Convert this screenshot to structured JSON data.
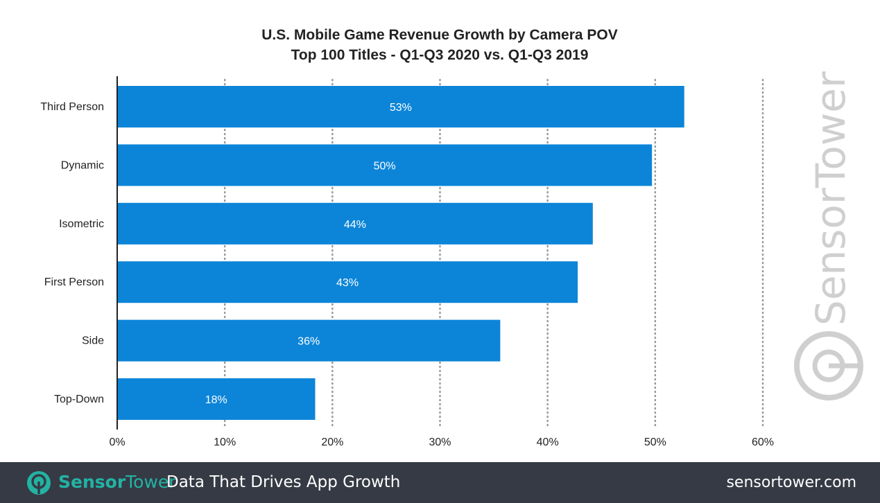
{
  "chart_data": {
    "type": "bar",
    "orientation": "horizontal",
    "title": "U.S. Mobile Game Revenue Growth by Camera POV",
    "subtitle": "Top 100 Titles - Q1-Q3 2020 vs. Q1-Q3 2019",
    "categories": [
      "Third Person",
      "Dynamic",
      "Isometric",
      "First Person",
      "Side",
      "Top-Down"
    ],
    "values": [
      52.7,
      49.7,
      44.2,
      42.8,
      35.6,
      18.4
    ],
    "data_labels": [
      "53%",
      "50%",
      "44%",
      "43%",
      "36%",
      "18%"
    ],
    "xlim": [
      0,
      60
    ],
    "xticks": [
      "0%",
      "10%",
      "20%",
      "30%",
      "40%",
      "50%",
      "60%"
    ],
    "grid": "vertical dotted",
    "bar_color": "#0c85d8",
    "xlabel": "",
    "ylabel": ""
  },
  "watermark": "SensorTower",
  "footer": {
    "brand_bold": "Sensor",
    "brand_rest": "Tower",
    "tagline": "Data That Drives App Growth",
    "url": "sensortower.com",
    "brand_color": "#22b3a3"
  }
}
